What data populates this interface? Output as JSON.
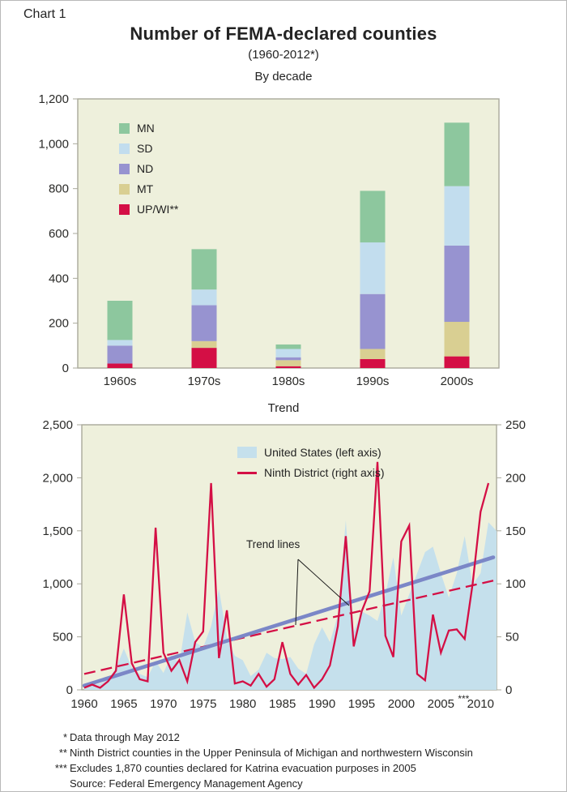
{
  "figure": {
    "chart_label": "Chart 1",
    "title": "Number of FEMA-declared counties",
    "subtitle": "(1960-2012*)"
  },
  "colors": {
    "plot_background": "#eef0dc",
    "plot_border": "#a9a99b",
    "mn_green": "#8dc79e",
    "sd_light_blue": "#c2ddee",
    "nd_purple": "#9793d0",
    "mt_tan": "#d9cf92",
    "upwi_red": "#d40f45",
    "us_area_fill": "#c5e0ec",
    "ninth_district_line": "#d40f45",
    "us_trend_line": "#7b87c7",
    "ninth_district_trend_line": "#d40f45",
    "axis_text": "#2a2a28"
  },
  "chart_data": [
    {
      "type": "bar",
      "title": "By decade",
      "stacked": true,
      "categories": [
        "1960s",
        "1970s",
        "1980s",
        "1990s",
        "2000s"
      ],
      "series": [
        {
          "name": "UP/WI**",
          "color": "#d40f45",
          "values": [
            20,
            90,
            8,
            40,
            52
          ]
        },
        {
          "name": "MT",
          "color": "#d9cf92",
          "values": [
            0,
            30,
            27,
            45,
            154
          ]
        },
        {
          "name": "ND",
          "color": "#9793d0",
          "values": [
            80,
            160,
            13,
            245,
            340
          ]
        },
        {
          "name": "SD",
          "color": "#c2ddee",
          "values": [
            25,
            70,
            37,
            230,
            265
          ]
        },
        {
          "name": "MN",
          "color": "#8dc79e",
          "values": [
            175,
            180,
            20,
            230,
            283
          ]
        }
      ],
      "legend": [
        "MN",
        "SD",
        "ND",
        "MT",
        "UP/WI**"
      ],
      "ylim": [
        0,
        1200
      ],
      "yticks": [
        {
          "value": 0,
          "label": "0"
        },
        {
          "value": 200,
          "label": "200"
        },
        {
          "value": 400,
          "label": "400"
        },
        {
          "value": 600,
          "label": "600"
        },
        {
          "value": 800,
          "label": "800"
        },
        {
          "value": 1000,
          "label": "1,000"
        },
        {
          "value": 1200,
          "label": "1,200"
        }
      ],
      "grid": false,
      "legend_position": "inside top-left"
    },
    {
      "type": "area+line",
      "title": "Trend",
      "left_ylim": [
        0,
        2500
      ],
      "right_ylim": [
        0,
        250
      ],
      "left_yticks": [
        {
          "value": 0,
          "label": "0"
        },
        {
          "value": 500,
          "label": "500"
        },
        {
          "value": 1000,
          "label": "1,000"
        },
        {
          "value": 1500,
          "label": "1,500"
        },
        {
          "value": 2000,
          "label": "2,000"
        },
        {
          "value": 2500,
          "label": "2,500"
        }
      ],
      "right_yticks": [
        {
          "value": 0,
          "label": "0"
        },
        {
          "value": 50,
          "label": "50"
        },
        {
          "value": 100,
          "label": "100"
        },
        {
          "value": 150,
          "label": "150"
        },
        {
          "value": 200,
          "label": "200"
        },
        {
          "value": 250,
          "label": "250"
        }
      ],
      "xticks": [
        {
          "year": 1960,
          "label": "1960"
        },
        {
          "year": 1965,
          "label": "1965"
        },
        {
          "year": 1970,
          "label": "1970"
        },
        {
          "year": 1975,
          "label": "1975"
        },
        {
          "year": 1980,
          "label": "1980"
        },
        {
          "year": 1985,
          "label": "1985"
        },
        {
          "year": 1990,
          "label": "1990"
        },
        {
          "year": 1995,
          "label": "1995"
        },
        {
          "year": 2000,
          "label": "2000"
        },
        {
          "year": 2005,
          "label": "2005",
          "suffix": "***"
        },
        {
          "year": 2010,
          "label": "2010"
        }
      ],
      "series": [
        {
          "name": "United States (left axis)",
          "type": "area",
          "axis": "left",
          "color": "#c5e0ec",
          "x": [
            1960,
            1961,
            1962,
            1963,
            1964,
            1965,
            1966,
            1967,
            1968,
            1969,
            1970,
            1971,
            1972,
            1973,
            1974,
            1975,
            1976,
            1977,
            1978,
            1979,
            1980,
            1981,
            1982,
            1983,
            1984,
            1985,
            1986,
            1987,
            1988,
            1989,
            1990,
            1991,
            1992,
            1993,
            1994,
            1995,
            1996,
            1997,
            1998,
            1999,
            2000,
            2001,
            2002,
            2003,
            2004,
            2005,
            2006,
            2007,
            2008,
            2009,
            2010,
            2011,
            2012
          ],
          "values": [
            30,
            50,
            60,
            100,
            200,
            390,
            210,
            150,
            120,
            270,
            160,
            330,
            250,
            730,
            450,
            400,
            600,
            950,
            500,
            320,
            280,
            130,
            190,
            350,
            300,
            290,
            310,
            200,
            150,
            430,
            590,
            450,
            700,
            1600,
            550,
            740,
            700,
            650,
            900,
            1250,
            700,
            900,
            1100,
            1300,
            1350,
            1100,
            870,
            1100,
            1450,
            990,
            1100,
            1580,
            1500
          ]
        },
        {
          "name": "Ninth District (right axis)",
          "type": "line",
          "axis": "right",
          "color": "#d40f45",
          "x": [
            1960,
            1961,
            1962,
            1963,
            1964,
            1965,
            1966,
            1967,
            1968,
            1969,
            1970,
            1971,
            1972,
            1973,
            1974,
            1975,
            1976,
            1977,
            1978,
            1979,
            1980,
            1981,
            1982,
            1983,
            1984,
            1985,
            1986,
            1987,
            1988,
            1989,
            1990,
            1991,
            1992,
            1993,
            1994,
            1995,
            1996,
            1997,
            1998,
            1999,
            2000,
            2001,
            2002,
            2003,
            2004,
            2005,
            2006,
            2007,
            2008,
            2009,
            2010,
            2011
          ],
          "values": [
            2,
            5,
            2,
            8,
            18,
            90,
            25,
            10,
            8,
            153,
            35,
            18,
            28,
            8,
            45,
            55,
            195,
            30,
            75,
            6,
            8,
            4,
            15,
            3,
            10,
            45,
            15,
            5,
            14,
            2,
            10,
            23,
            60,
            145,
            41,
            74,
            93,
            215,
            51,
            31,
            140,
            155,
            15,
            9,
            71,
            35,
            56,
            57,
            48,
            100,
            168,
            195
          ]
        }
      ],
      "trend_lines": [
        {
          "name": "United States trend",
          "axis": "left",
          "style": "solid",
          "color": "#7b87c7",
          "start": {
            "year": 1960,
            "value": 40
          },
          "end": {
            "year": 2012,
            "value": 1250
          }
        },
        {
          "name": "Ninth District trend",
          "axis": "right",
          "style": "dashed",
          "color": "#d40f45",
          "start": {
            "year": 1960,
            "value": 15
          },
          "end": {
            "year": 2012,
            "value": 103
          }
        }
      ],
      "annotation": {
        "label": "Trend lines"
      },
      "grid": false,
      "legend_position": "inside top-center"
    }
  ],
  "footnotes": [
    {
      "marker": "*",
      "text": "Data through May 2012"
    },
    {
      "marker": "**",
      "text": "Ninth District counties in the Upper Peninsula of Michigan and northwestern Wisconsin"
    },
    {
      "marker": "***",
      "text": "Excludes 1,870 counties declared for Katrina evacuation purposes in 2005"
    },
    {
      "marker": "",
      "text": "Source: Federal Emergency Management Agency"
    }
  ]
}
